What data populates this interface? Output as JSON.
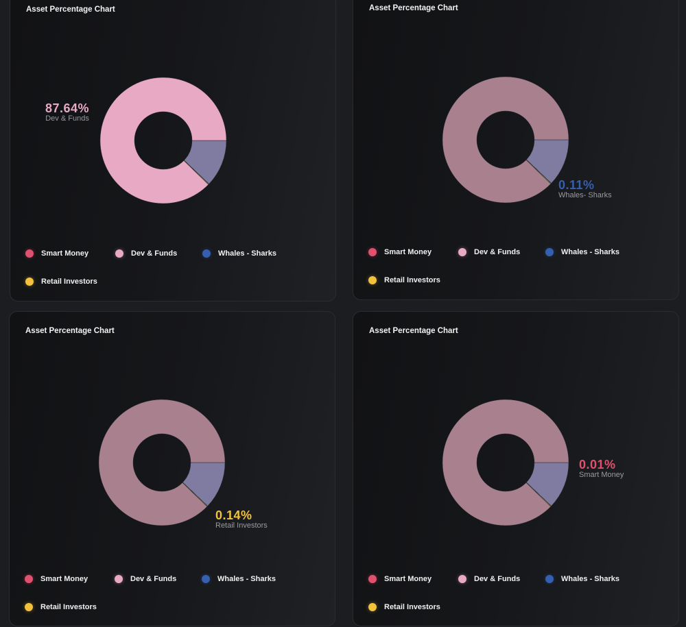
{
  "colors": {
    "smart_money": "#e2506f",
    "dev_funds": "#e8a9c4",
    "dev_funds_dim": "#a8808e",
    "whales_sharks": "#3560b0",
    "retail": "#f2c23c",
    "remainder": "#7f7ba1"
  },
  "chart_data": [
    {
      "type": "pie",
      "donut": true,
      "title": "Asset Percentage Chart",
      "highlight": {
        "value": "87.64%",
        "label": "Dev & Funds",
        "key": "dev_funds"
      },
      "legend": [
        "Smart Money",
        "Dev & Funds",
        "Whales - Sharks",
        "Retail Investors"
      ],
      "slices": [
        {
          "name": "Smart Money",
          "key": "smart_money",
          "value": 0.01
        },
        {
          "name": "Dev & Funds",
          "key": "dev_funds",
          "value": 87.64
        },
        {
          "name": "Whales - Sharks",
          "key": "whales_sharks",
          "value": 0.11
        },
        {
          "name": "Retail Investors",
          "key": "retail",
          "value": 0.14
        }
      ]
    },
    {
      "type": "pie",
      "donut": true,
      "title": "Asset Percentage Chart",
      "highlight": {
        "value": "0.11%",
        "label": "Whales- Sharks",
        "key": "whales_sharks"
      },
      "legend": [
        "Smart Money",
        "Dev & Funds",
        "Whales - Sharks",
        "Retail Investors"
      ],
      "slices": [
        {
          "name": "Smart Money",
          "key": "smart_money",
          "value": 0.01
        },
        {
          "name": "Dev & Funds",
          "key": "dev_funds",
          "value": 87.64
        },
        {
          "name": "Whales - Sharks",
          "key": "whales_sharks",
          "value": 0.11
        },
        {
          "name": "Retail Investors",
          "key": "retail",
          "value": 0.14
        }
      ]
    },
    {
      "type": "pie",
      "donut": true,
      "title": "Asset Percentage Chart",
      "highlight": {
        "value": "0.14%",
        "label": "Retail Investors",
        "key": "retail"
      },
      "legend": [
        "Smart Money",
        "Dev & Funds",
        "Whales - Sharks",
        "Retail Investors"
      ],
      "slices": [
        {
          "name": "Smart Money",
          "key": "smart_money",
          "value": 0.01
        },
        {
          "name": "Dev & Funds",
          "key": "dev_funds",
          "value": 87.64
        },
        {
          "name": "Whales - Sharks",
          "key": "whales_sharks",
          "value": 0.11
        },
        {
          "name": "Retail Investors",
          "key": "retail",
          "value": 0.14
        }
      ]
    },
    {
      "type": "pie",
      "donut": true,
      "title": "Asset Percentage Chart",
      "highlight": {
        "value": "0.01%",
        "label": "Smart Money",
        "key": "smart_money"
      },
      "legend": [
        "Smart Money",
        "Dev & Funds",
        "Whales - Sharks",
        "Retail Investors"
      ],
      "slices": [
        {
          "name": "Smart Money",
          "key": "smart_money",
          "value": 0.01
        },
        {
          "name": "Dev & Funds",
          "key": "dev_funds",
          "value": 87.64
        },
        {
          "name": "Whales - Sharks",
          "key": "whales_sharks",
          "value": 0.11
        },
        {
          "name": "Retail Investors",
          "key": "retail",
          "value": 0.14
        }
      ]
    }
  ]
}
